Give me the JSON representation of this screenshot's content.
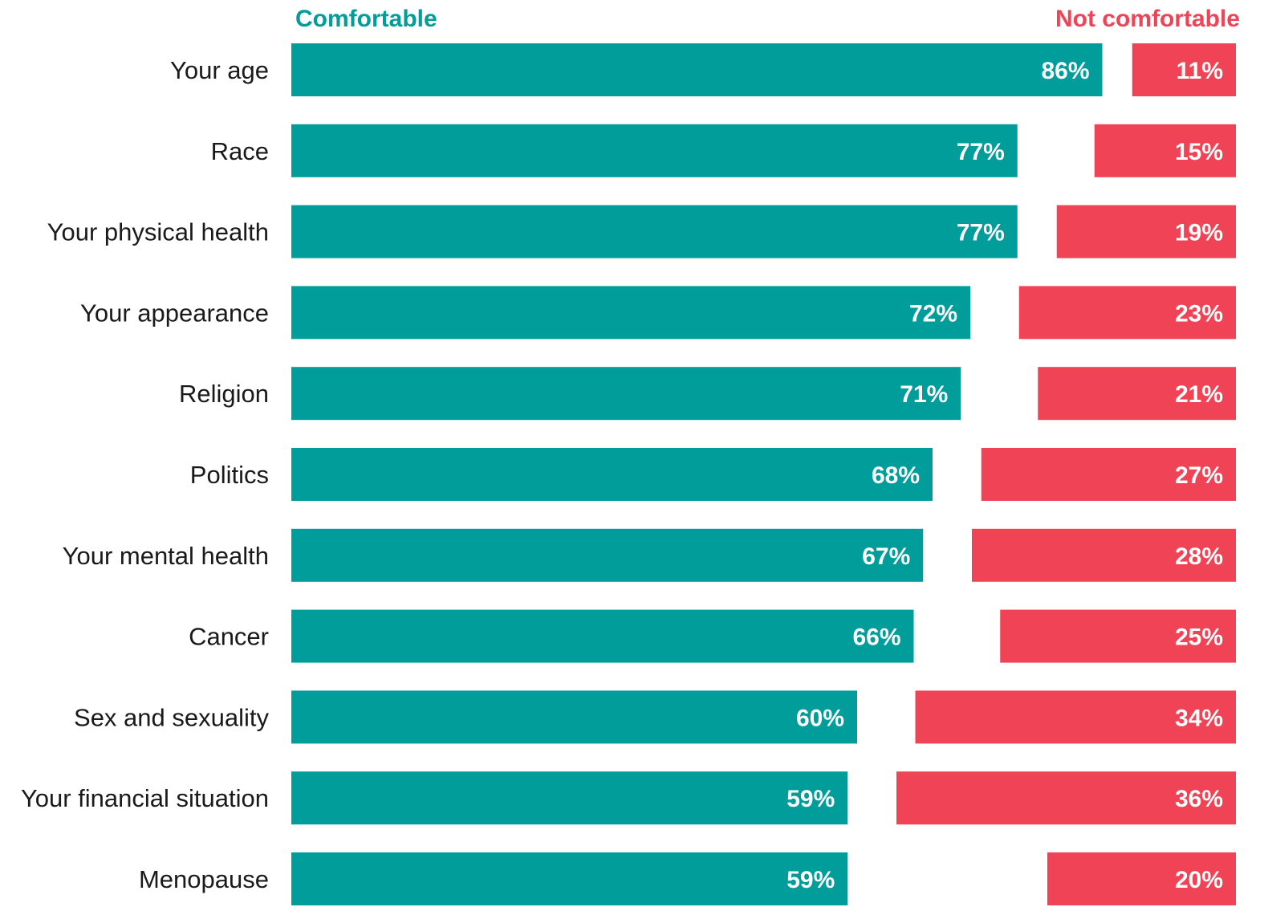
{
  "chart_data": {
    "type": "bar",
    "title": "",
    "xlabel": "",
    "ylabel": "",
    "xlim": [
      0,
      100
    ],
    "grid": false,
    "legend": "top",
    "categories": [
      "Your age",
      "Race",
      "Your physical health",
      "Your appearance",
      "Religion",
      "Politics",
      "Your mental health",
      "Cancer",
      "Sex and sexuality",
      "Your financial situation",
      "Menopause"
    ],
    "series": [
      {
        "name": "Comfortable",
        "color": "#009d9a",
        "values": [
          86,
          77,
          77,
          72,
          71,
          68,
          67,
          66,
          60,
          59,
          59
        ]
      },
      {
        "name": "Not comfortable",
        "color": "#f04456",
        "values": [
          11,
          15,
          19,
          23,
          21,
          27,
          28,
          25,
          34,
          36,
          20
        ]
      }
    ]
  }
}
